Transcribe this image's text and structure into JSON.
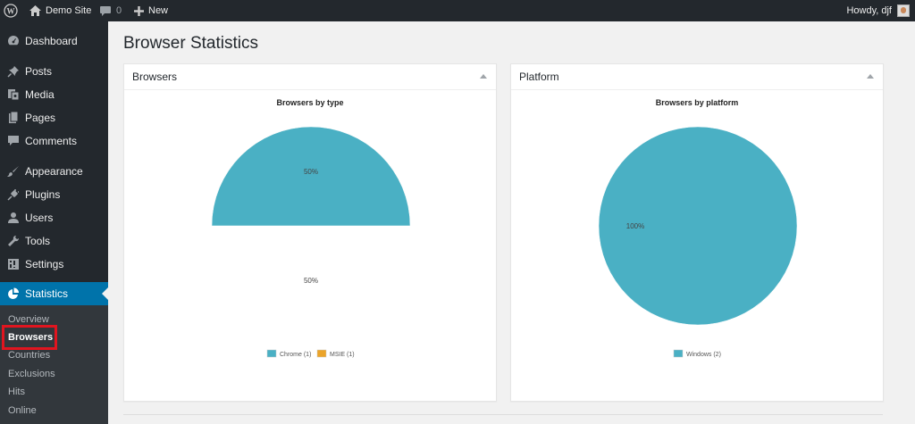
{
  "adminbar": {
    "site_name": "Demo Site",
    "comments_count": "0",
    "new_label": "New",
    "howdy": "Howdy, djf"
  },
  "sidebar": {
    "items": [
      {
        "label": "Dashboard",
        "icon": "dashboard-icon"
      },
      {
        "label": "Posts",
        "icon": "pin-icon"
      },
      {
        "label": "Media",
        "icon": "media-icon"
      },
      {
        "label": "Pages",
        "icon": "pages-icon"
      },
      {
        "label": "Comments",
        "icon": "comment-icon"
      },
      {
        "label": "Appearance",
        "icon": "brush-icon"
      },
      {
        "label": "Plugins",
        "icon": "plug-icon"
      },
      {
        "label": "Users",
        "icon": "user-icon"
      },
      {
        "label": "Tools",
        "icon": "wrench-icon"
      },
      {
        "label": "Settings",
        "icon": "settings-icon"
      },
      {
        "label": "Statistics",
        "icon": "pie-chart-icon"
      }
    ],
    "submenu": [
      "Overview",
      "Browsers",
      "Countries",
      "Exclusions",
      "Hits",
      "Online"
    ]
  },
  "page": {
    "title": "Browser Statistics"
  },
  "colors": {
    "chrome": "#4ab0c4",
    "msie": "#eba42a",
    "accent": "#0073aa"
  },
  "boxes": {
    "browsers": {
      "heading": "Browsers"
    },
    "platform": {
      "heading": "Platform"
    }
  },
  "chart_data": [
    {
      "type": "pie",
      "title": "Browsers by type",
      "slices": [
        {
          "label": "Chrome (1)",
          "value": 1,
          "percent_label": "50%",
          "color": "#4ab0c4"
        },
        {
          "label": "MSIE (1)",
          "value": 1,
          "percent_label": "50%",
          "color": "#eba42a"
        }
      ],
      "legend_position": "bottom"
    },
    {
      "type": "pie",
      "title": "Browsers by platform",
      "slices": [
        {
          "label": "Windows (2)",
          "value": 2,
          "percent_label": "100%",
          "color": "#4ab0c4"
        }
      ],
      "legend_position": "bottom"
    }
  ]
}
